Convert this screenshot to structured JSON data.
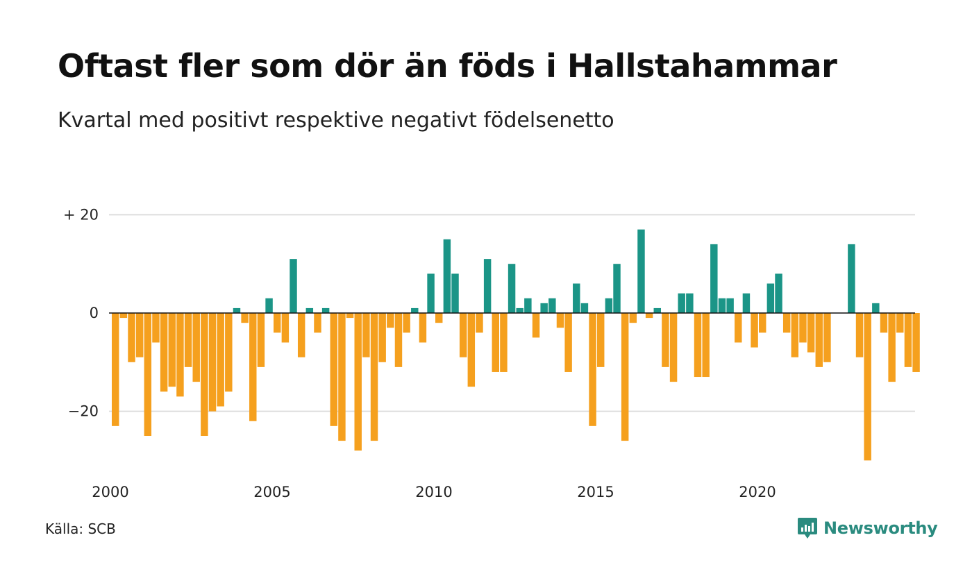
{
  "colors": {
    "positive": "#1b9587",
    "negative": "#f5a01e",
    "grid": "#dddddd",
    "zero_line": "#111111",
    "brand": "#2a8b7f"
  },
  "header": {
    "title": "Oftast fler som dör än föds i Hallstahammar",
    "subtitle": "Kvartal med positivt respektive negativt födelsenetto"
  },
  "footer": {
    "source": "Källa: SCB",
    "brand_name": "Newsworthy",
    "brand_icon": "bar-chart-logo-icon"
  },
  "chart_data": {
    "type": "bar",
    "title": "Oftast fler som dör än föds i Hallstahammar",
    "subtitle": "Kvartal med positivt respektive negativt födelsenetto",
    "xlabel": "",
    "ylabel": "",
    "start_year": 2000,
    "periods_per_year": 4,
    "x_ticks": [
      "2000",
      "2005",
      "2010",
      "2015",
      "2020"
    ],
    "y_ticks": [
      {
        "value": 20,
        "label": "+ 20"
      },
      {
        "value": 0,
        "label": "0"
      },
      {
        "value": -20,
        "label": "−20"
      }
    ],
    "ylim": [
      -32,
      21
    ],
    "grid": true,
    "values": [
      -23,
      -1,
      -10,
      -9,
      -25,
      -6,
      -16,
      -15,
      -17,
      -11,
      -14,
      -25,
      -20,
      -19,
      -16,
      1,
      -2,
      -22,
      -11,
      3,
      -4,
      -6,
      11,
      -9,
      1,
      -4,
      1,
      -23,
      -26,
      -1,
      -28,
      -9,
      -26,
      -10,
      -3,
      -11,
      -4,
      1,
      -6,
      8,
      -2,
      15,
      8,
      -9,
      -15,
      -4,
      11,
      -12,
      -12,
      10,
      1,
      3,
      -5,
      2,
      3,
      -3,
      -12,
      6,
      2,
      -23,
      -11,
      3,
      10,
      -26,
      -2,
      17,
      -1,
      1,
      -11,
      -14,
      4,
      4,
      -13,
      -13,
      14,
      3,
      3,
      -6,
      4,
      -7,
      -4,
      6,
      8,
      -4,
      -9,
      -6,
      -8,
      -11,
      -10,
      0,
      0,
      14,
      -9,
      -30,
      2,
      -4,
      -14,
      -4,
      -11,
      -12
    ]
  }
}
